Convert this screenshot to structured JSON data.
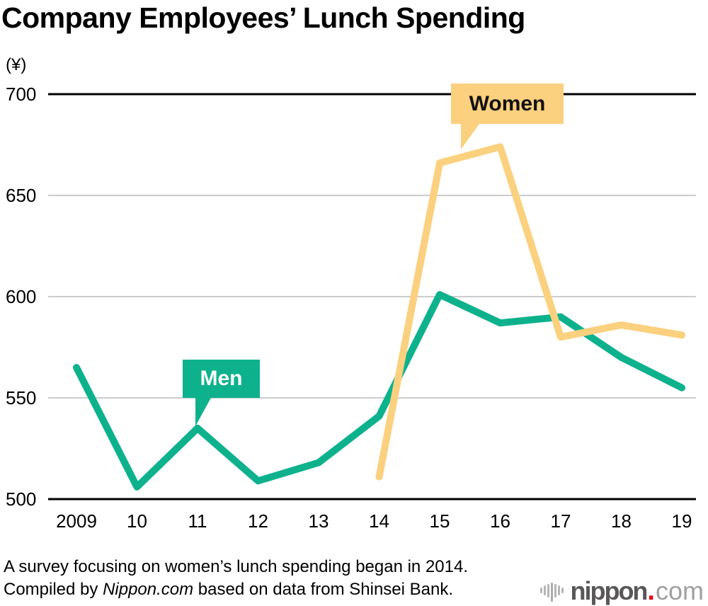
{
  "title": "Company Employees’ Lunch Spending",
  "y_axis_unit": "(¥)",
  "annotations": {
    "men_label": "Men",
    "women_label": "Women"
  },
  "footnote": {
    "line1": "A survey focusing on women’s lunch spending began in 2014.",
    "line2_prefix": "Compiled by ",
    "line2_italic": "Nippon.com",
    "line2_suffix": " based on data from Shinsei Bank."
  },
  "logo": {
    "icon": "waveform-icon",
    "word_main": "nippon",
    "word_dot": ".",
    "word_tld": "com"
  },
  "colors": {
    "men": "#0db28d",
    "women": "#fbd07e",
    "grid": "#cccccc",
    "axis": "#000000",
    "logo_gray": "#595757",
    "logo_light": "#9fa0a0",
    "logo_red": "#e60012"
  },
  "chart_data": {
    "type": "line",
    "title": "Company Employees’ Lunch Spending",
    "ylabel": "(¥)",
    "ylim": [
      500,
      700
    ],
    "yticks": [
      500,
      550,
      600,
      650,
      700
    ],
    "grid": "horizontal",
    "legend_position": "callouts-on-lines",
    "x": [
      2009,
      2010,
      2011,
      2012,
      2013,
      2014,
      2015,
      2016,
      2017,
      2018,
      2019
    ],
    "x_labels": [
      "2009",
      "10",
      "11",
      "12",
      "13",
      "14",
      "15",
      "16",
      "17",
      "18",
      "19"
    ],
    "series": [
      {
        "name": "Men",
        "color": "#0db28d",
        "values": [
          565,
          506,
          535,
          509,
          518,
          541,
          601,
          587,
          590,
          570,
          555
        ]
      },
      {
        "name": "Women",
        "color": "#fbd07e",
        "values": [
          null,
          null,
          null,
          null,
          null,
          511,
          666,
          674,
          580,
          586,
          581
        ]
      }
    ],
    "annotations": [
      {
        "label": "Men",
        "target_year": 2011
      },
      {
        "label": "Women",
        "target_year": 2015
      }
    ]
  }
}
